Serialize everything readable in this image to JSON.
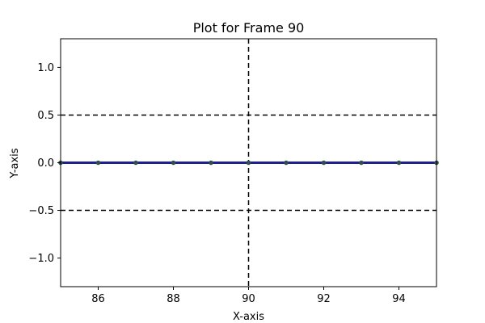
{
  "chart_data": {
    "type": "line",
    "title": "Plot for Frame 90",
    "xlabel": "X-axis",
    "ylabel": "Y-axis",
    "xlim": [
      85,
      95
    ],
    "ylim": [
      -1.3,
      1.3
    ],
    "x_ticks": [
      86,
      88,
      90,
      92,
      94
    ],
    "x_tick_labels": [
      "86",
      "88",
      "90",
      "92",
      "94"
    ],
    "y_ticks": [
      -1.0,
      -0.5,
      0.0,
      0.5,
      1.0
    ],
    "y_tick_labels": [
      "−1.0",
      "−0.5",
      "0.0",
      "0.5",
      "1.0"
    ],
    "grid": false,
    "series": [
      {
        "x": [
          85,
          86,
          87,
          88,
          89,
          90,
          91,
          92,
          93,
          94,
          95
        ],
        "values": [
          0,
          0,
          0,
          0,
          0,
          0,
          0,
          0,
          0,
          0,
          0
        ],
        "color": "#1f1f8f",
        "marker_color": "#2f4f4f"
      }
    ],
    "reference_lines": {
      "horizontal": [
        0.5,
        -0.5
      ],
      "vertical": [
        90
      ],
      "style": "dashed",
      "color": "#000000"
    }
  }
}
